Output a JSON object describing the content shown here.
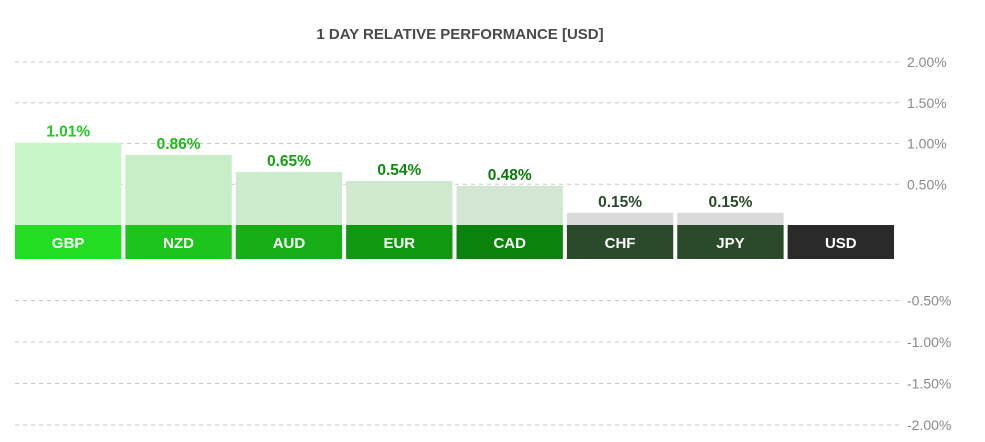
{
  "chart_data": {
    "type": "bar",
    "title": "1 DAY RELATIVE PERFORMANCE  [USD]",
    "categories": [
      "GBP",
      "NZD",
      "AUD",
      "EUR",
      "CAD",
      "CHF",
      "JPY",
      "USD"
    ],
    "values": [
      1.01,
      0.86,
      0.65,
      0.54,
      0.48,
      0.15,
      0.15,
      0
    ],
    "value_labels": [
      "1.01%",
      "0.86%",
      "0.65%",
      "0.54%",
      "0.48%",
      "0.15%",
      "0.15%",
      ""
    ],
    "ylim": [
      -2,
      2
    ],
    "yticks": [
      2.0,
      1.5,
      1.0,
      0.5,
      -0.5,
      -1.0,
      -1.5,
      -2.0
    ],
    "ytick_labels": [
      "2.00%",
      "1.50%",
      "1.00%",
      "0.50%",
      "-0.50%",
      "-1.00%",
      "-1.50%",
      "-2.00%"
    ],
    "grid": true,
    "colors": {
      "label_bg": [
        "#22dd22",
        "#1cc41c",
        "#16ad16",
        "#109810",
        "#0b820b",
        "#2b4a2b",
        "#2b4a2b",
        "#2a2a2a"
      ],
      "bar_fill": [
        "#c8f6c8",
        "#c8eec8",
        "#cdeccd",
        "#cfe9cf",
        "#d3e6d3",
        "#dadada",
        "#dadada",
        "#dadada"
      ],
      "value_text": [
        "#22cc22",
        "#1cba1c",
        "#14a014",
        "#0e8a0e",
        "#0a780a",
        "#2b4a2b",
        "#2b4a2b",
        "#2a2a2a"
      ]
    }
  }
}
